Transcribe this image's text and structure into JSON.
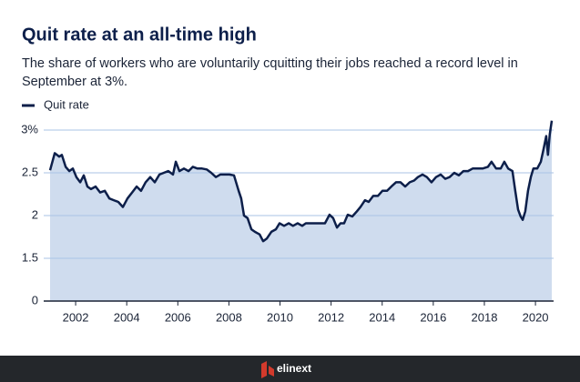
{
  "chart_data": {
    "type": "area",
    "title": "Quit rate at an all-time high",
    "subtitle": "The share of workers who are voluntarily cquitting their jobs reached a record level in September at 3%.",
    "footer": "elinext",
    "x": [
      2001.0,
      2001.18,
      2001.36,
      2001.46,
      2001.61,
      2001.75,
      2001.89,
      2002.03,
      2002.18,
      2002.32,
      2002.46,
      2002.6,
      2002.78,
      2002.96,
      2003.14,
      2003.32,
      2003.49,
      2003.67,
      2003.85,
      2004.03,
      2004.21,
      2004.39,
      2004.56,
      2004.74,
      2004.92,
      2005.1,
      2005.28,
      2005.45,
      2005.63,
      2005.81,
      2005.92,
      2006.06,
      2006.24,
      2006.42,
      2006.59,
      2006.77,
      2006.95,
      2007.13,
      2007.31,
      2007.49,
      2007.66,
      2007.84,
      2008.02,
      2008.2,
      2008.38,
      2008.48,
      2008.59,
      2008.73,
      2008.88,
      2009.02,
      2009.2,
      2009.34,
      2009.48,
      2009.66,
      2009.84,
      2009.98,
      2010.16,
      2010.34,
      2010.51,
      2010.69,
      2010.87,
      2011.01,
      2011.23,
      2011.41,
      2011.58,
      2011.76,
      2011.94,
      2012.08,
      2012.23,
      2012.37,
      2012.51,
      2012.65,
      2012.83,
      2013.01,
      2013.15,
      2013.33,
      2013.47,
      2013.65,
      2013.83,
      2014.01,
      2014.19,
      2014.36,
      2014.54,
      2014.72,
      2014.9,
      2015.08,
      2015.25,
      2015.4,
      2015.58,
      2015.75,
      2015.93,
      2016.11,
      2016.29,
      2016.47,
      2016.64,
      2016.82,
      2017.0,
      2017.18,
      2017.36,
      2017.54,
      2017.71,
      2017.93,
      2018.14,
      2018.28,
      2018.46,
      2018.64,
      2018.78,
      2018.93,
      2019.1,
      2019.21,
      2019.32,
      2019.42,
      2019.5,
      2019.6,
      2019.71,
      2019.82,
      2019.92,
      2020.07,
      2020.21,
      2020.31,
      2020.42,
      2020.49,
      2020.56,
      2020.64
    ],
    "series": [
      {
        "name": "Quit rate",
        "color": "#0d1f4a",
        "fill": "#cfdcee",
        "values": [
          2.53,
          2.73,
          2.69,
          2.71,
          2.57,
          2.52,
          2.55,
          2.45,
          2.39,
          2.47,
          2.34,
          2.31,
          2.34,
          2.27,
          2.29,
          2.2,
          2.18,
          2.16,
          2.1,
          2.2,
          2.27,
          2.34,
          2.29,
          2.39,
          2.45,
          2.39,
          2.48,
          2.5,
          2.52,
          2.48,
          2.63,
          2.52,
          2.55,
          2.52,
          2.57,
          2.55,
          2.55,
          2.54,
          2.5,
          2.45,
          2.48,
          2.48,
          2.48,
          2.47,
          2.29,
          2.2,
          2.0,
          1.97,
          1.84,
          1.81,
          1.78,
          1.7,
          1.73,
          1.81,
          1.84,
          1.91,
          1.88,
          1.91,
          1.88,
          1.91,
          1.88,
          1.91,
          1.91,
          1.91,
          1.91,
          1.91,
          2.01,
          1.97,
          1.86,
          1.91,
          1.91,
          2.01,
          1.99,
          2.05,
          2.1,
          2.18,
          2.16,
          2.23,
          2.23,
          2.29,
          2.29,
          2.34,
          2.39,
          2.39,
          2.34,
          2.39,
          2.41,
          2.45,
          2.48,
          2.45,
          2.39,
          2.45,
          2.48,
          2.43,
          2.45,
          2.5,
          2.47,
          2.52,
          2.52,
          2.55,
          2.55,
          2.55,
          2.57,
          2.63,
          2.55,
          2.55,
          2.63,
          2.55,
          2.52,
          2.29,
          2.07,
          1.99,
          1.95,
          2.05,
          2.29,
          2.45,
          2.55,
          2.55,
          2.63,
          2.77,
          2.93,
          2.71,
          2.95,
          3.11
        ]
      }
    ],
    "xlim": [
      2000.75,
      2020.71
    ],
    "xticks": [
      2002,
      2004,
      2006,
      2008,
      2010,
      2012,
      2014,
      2016,
      2018,
      2020
    ],
    "ylim": [
      0,
      3.16
    ],
    "yticks": [
      0,
      1.5,
      2,
      2.5,
      {
        "value": 3,
        "label": "3%"
      }
    ],
    "axis_break": [
      0,
      1.5
    ],
    "grid": true,
    "legend": "top-left"
  }
}
